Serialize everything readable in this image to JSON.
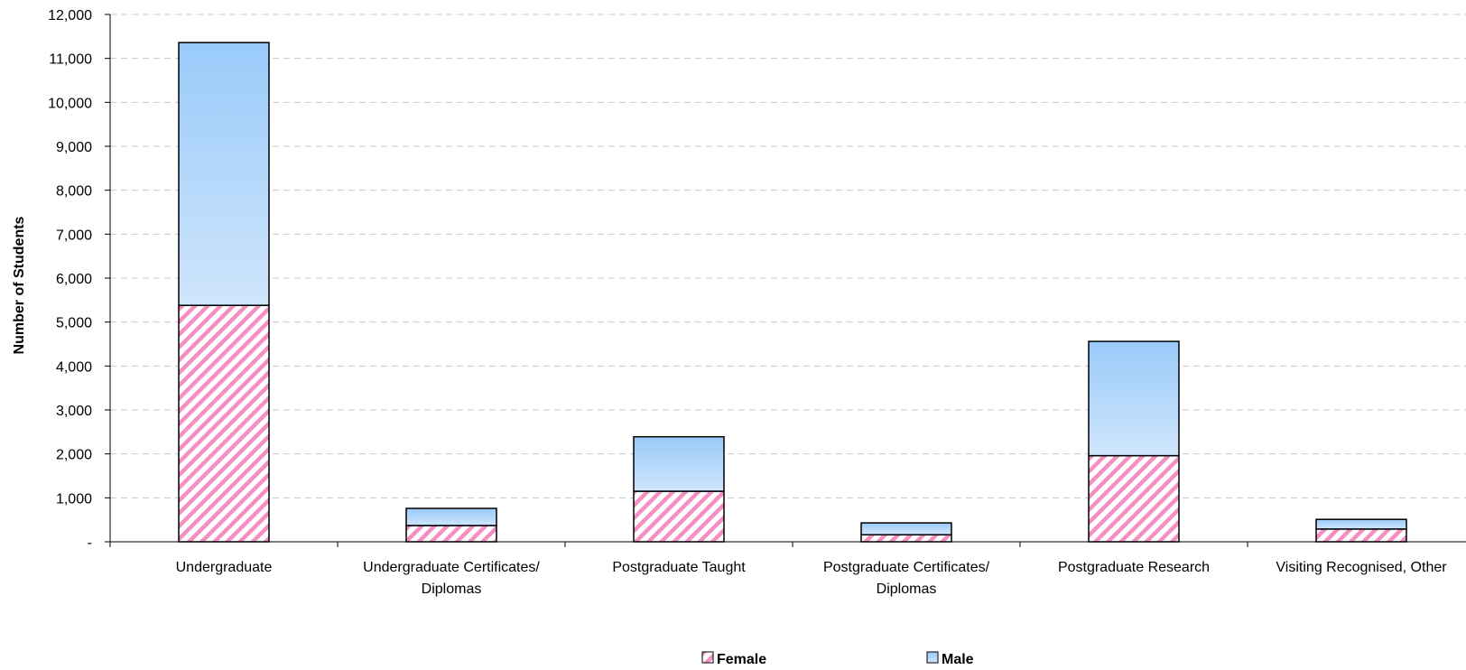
{
  "chart_data": {
    "type": "bar",
    "stacked": true,
    "ylabel": "Number of Students",
    "xlabel": "",
    "ylim": [
      0,
      12000
    ],
    "y_ticks": [
      0,
      1000,
      2000,
      3000,
      4000,
      5000,
      6000,
      7000,
      8000,
      9000,
      10000,
      11000,
      12000
    ],
    "y_tick_labels": [
      "-",
      "1,000",
      "2,000",
      "3,000",
      "4,000",
      "5,000",
      "6,000",
      "7,000",
      "8,000",
      "9,000",
      "10,000",
      "11,000",
      "12,000"
    ],
    "categories": [
      [
        "Undergraduate"
      ],
      [
        "Undergraduate Certificates/",
        "Diplomas"
      ],
      [
        "Postgraduate Taught"
      ],
      [
        "Postgraduate Certificates/",
        "Diplomas"
      ],
      [
        "Postgraduate Research"
      ],
      [
        "Visiting Recognised, Other"
      ]
    ],
    "series": [
      {
        "name": "Female",
        "values": [
          5380,
          370,
          1150,
          160,
          1960,
          290
        ],
        "color": "#f48fc4",
        "pattern": "diagonal-stripes"
      },
      {
        "name": "Male",
        "values": [
          5980,
          390,
          1240,
          270,
          2600,
          220
        ],
        "color": "#9fcdfb",
        "pattern": "vertical-gradient"
      }
    ],
    "grid": true,
    "legend": "bottom-center"
  }
}
